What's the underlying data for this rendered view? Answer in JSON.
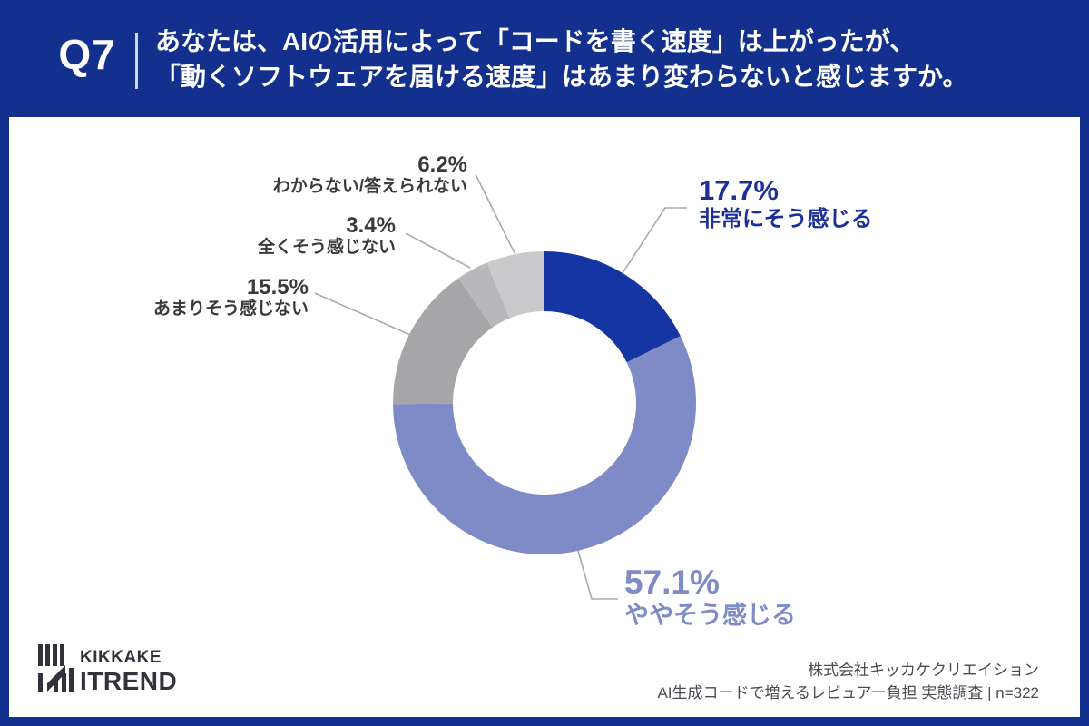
{
  "header": {
    "question_number": "Q7",
    "question_line1": "あなたは、AIの活用によって「コードを書く速度」は上がったが、",
    "question_line2": "「動くソフトウェアを届ける速度」はあまり変わらないと感じますか。"
  },
  "chart_data": {
    "type": "pie",
    "subtype": "donut",
    "start_angle_deg": 0,
    "direction": "clockwise",
    "donut_hole_ratio": 0.605,
    "segments": [
      {
        "label": "非常にそう感じる",
        "value": 17.7,
        "display": "17.7%",
        "color": "#1535a3",
        "label_color": "#1c3099"
      },
      {
        "label": "ややそう感じる",
        "value": 57.1,
        "display": "57.1%",
        "color": "#7e8bc6",
        "label_color": "#7e8bc6"
      },
      {
        "label": "あまりそう感じない",
        "value": 15.5,
        "display": "15.5%",
        "color": "#a6a6a8",
        "label_color": "#3a3a3a"
      },
      {
        "label": "全くそう感じない",
        "value": 3.4,
        "display": "3.4%",
        "color": "#b8b8ba",
        "label_color": "#3a3a3a"
      },
      {
        "label": "わからない/答えられない",
        "value": 6.2,
        "display": "6.2%",
        "color": "#c9c9cb",
        "label_color": "#3a3a3a"
      }
    ]
  },
  "footer": {
    "logo_line1": "KIKKAKE",
    "logo_line2": "ITREND",
    "credit_line1": "株式会社キッカケクリエイション",
    "credit_line2": "AI生成コードで増えるレビュアー負担 実態調査 | n=322"
  },
  "colors": {
    "background_navy": "#14308f",
    "panel_white": "#ffffff",
    "header_text": "#ffffff",
    "leader_line": "#a9a9af",
    "logo_ink": "#32323b",
    "credit_text": "#4b4b52"
  }
}
